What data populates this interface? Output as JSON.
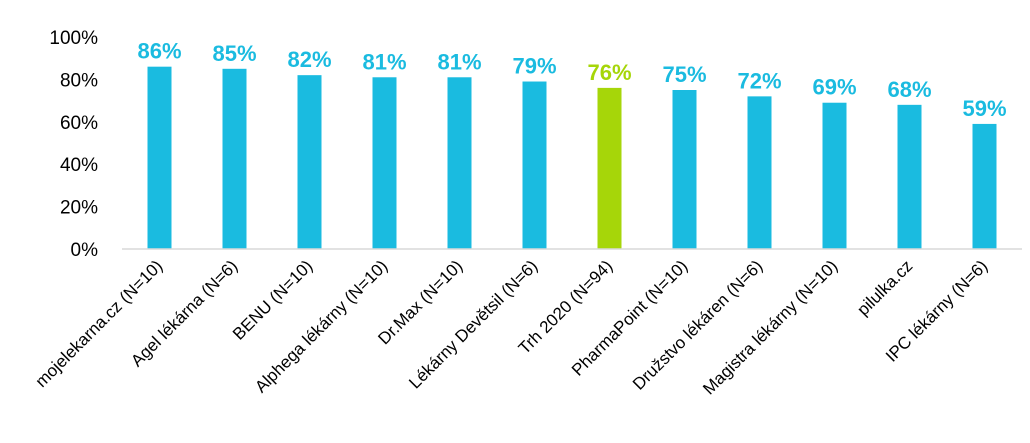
{
  "chart_data": {
    "type": "bar",
    "categories": [
      "mojelekarna.cz (N=10)",
      "Agel lékárna (N=6)",
      "BENU (N=10)",
      "Alphega lékárny (N=10)",
      "Dr.Max (N=10)",
      "Lékárny Devětsil (N=6)",
      "Trh 2020 (N=94)",
      "PharmaPoint (N=10)",
      "Družstvo lékáren (N=6)",
      "Magistra lékárny (N=10)",
      "pilulka.cz",
      "IPC lékárny (N=6)"
    ],
    "values": [
      86,
      85,
      82,
      81,
      81,
      79,
      76,
      75,
      72,
      69,
      68,
      59
    ],
    "data_labels": [
      "86%",
      "85%",
      "82%",
      "81%",
      "81%",
      "79%",
      "76%",
      "75%",
      "72%",
      "69%",
      "68%",
      "59%"
    ],
    "highlight_index": 6,
    "yticks": [
      0,
      20,
      40,
      60,
      80,
      100
    ],
    "ytick_labels": [
      "0%",
      "20%",
      "40%",
      "60%",
      "80%",
      "100%"
    ],
    "ylim": [
      0,
      100
    ],
    "grid": false,
    "title": "",
    "xlabel": "",
    "ylabel": "",
    "colors": {
      "bar": "#1ABBE0",
      "highlight": "#A6D609",
      "axis": "#D9D9D9",
      "text": "#000000"
    }
  }
}
